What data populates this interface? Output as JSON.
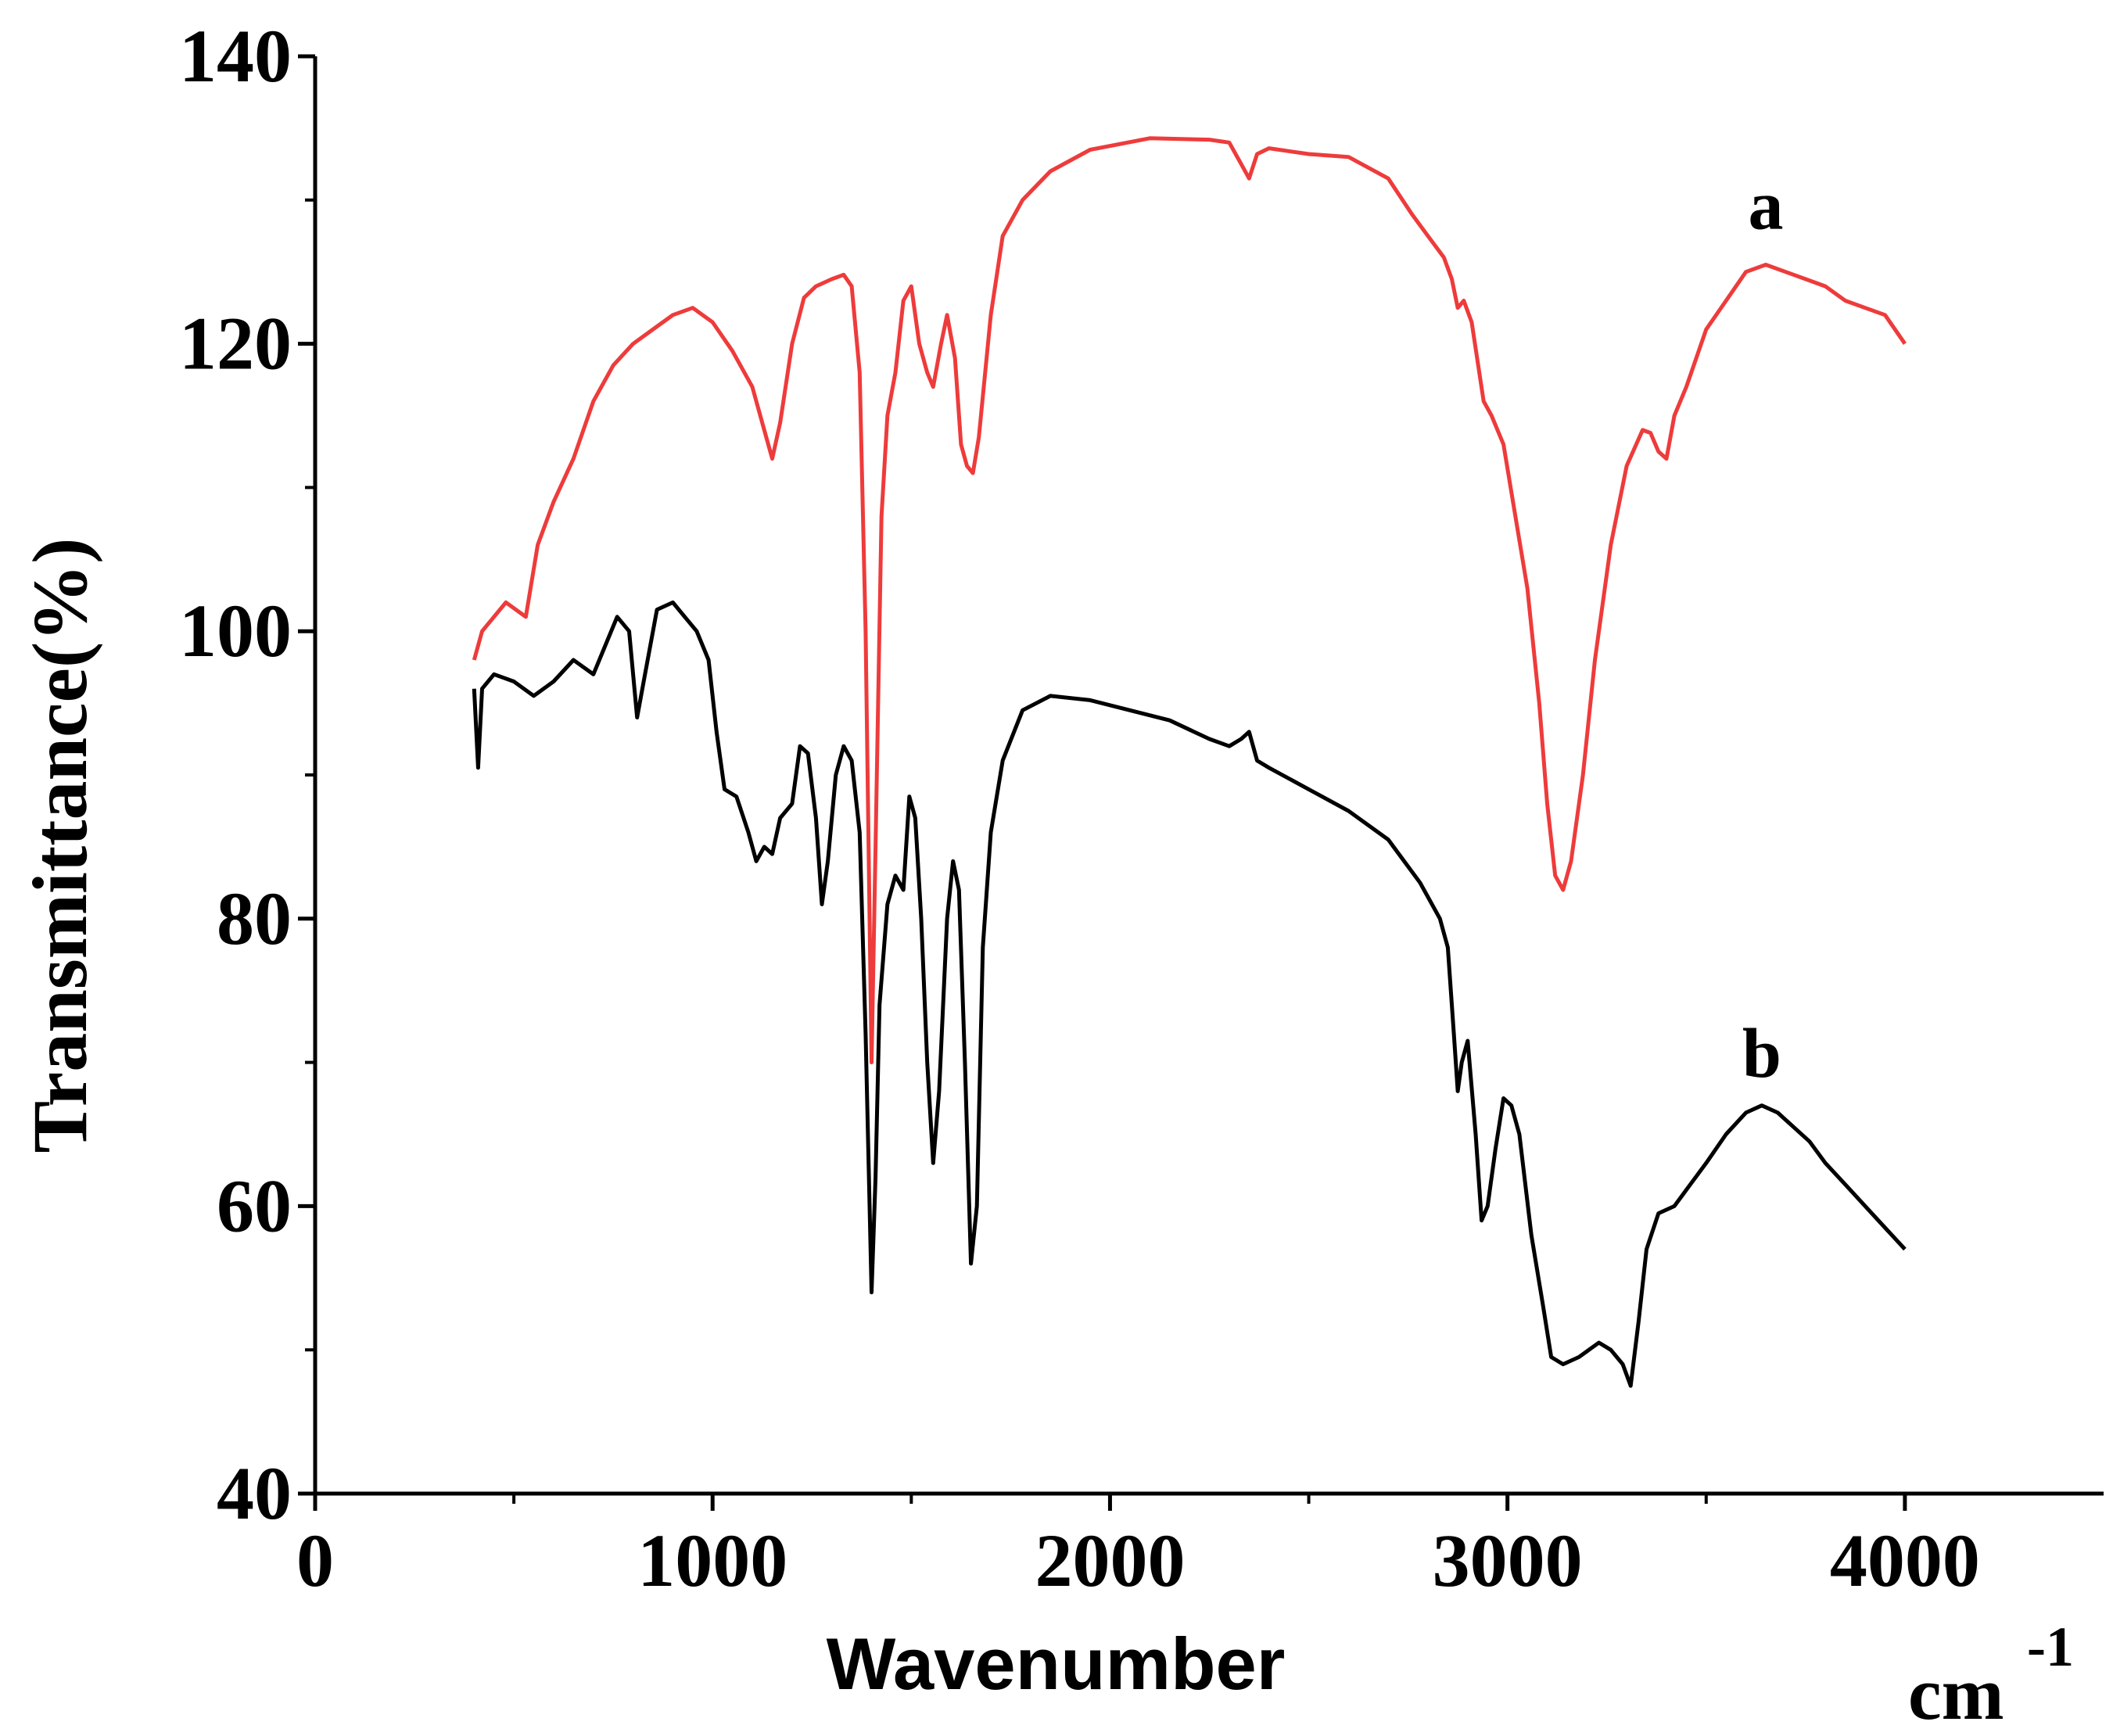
{
  "chart_data": {
    "type": "line",
    "title": "",
    "xlabel": "Wavenumber",
    "xunit": "cm",
    "xunit_exp": "-1",
    "ylabel": "Transmittance(%)",
    "xlim": [
      0,
      4500
    ],
    "ylim": [
      40,
      140
    ],
    "xticks": [
      0,
      1000,
      2000,
      3000,
      4000
    ],
    "yticks": [
      40,
      60,
      80,
      100,
      120,
      140
    ],
    "grid": false,
    "series": [
      {
        "name": "a",
        "color": "#ee3b3b",
        "label_at": [
          3650,
          128
        ],
        "points": [
          [
            400,
            98
          ],
          [
            420,
            100
          ],
          [
            480,
            102
          ],
          [
            530,
            101
          ],
          [
            560,
            106
          ],
          [
            600,
            109
          ],
          [
            650,
            112
          ],
          [
            700,
            116
          ],
          [
            750,
            118.5
          ],
          [
            800,
            120
          ],
          [
            850,
            121
          ],
          [
            900,
            122
          ],
          [
            950,
            122.5
          ],
          [
            1000,
            121.5
          ],
          [
            1050,
            119.5
          ],
          [
            1100,
            117
          ],
          [
            1130,
            114
          ],
          [
            1150,
            112
          ],
          [
            1170,
            114.5
          ],
          [
            1200,
            120
          ],
          [
            1230,
            123.2
          ],
          [
            1260,
            124
          ],
          [
            1300,
            124.5
          ],
          [
            1330,
            124.8
          ],
          [
            1350,
            124
          ],
          [
            1370,
            118
          ],
          [
            1385,
            100
          ],
          [
            1395,
            80
          ],
          [
            1400,
            70
          ],
          [
            1410,
            85
          ],
          [
            1425,
            108
          ],
          [
            1440,
            115
          ],
          [
            1460,
            118
          ],
          [
            1480,
            123
          ],
          [
            1500,
            124
          ],
          [
            1520,
            120
          ],
          [
            1540,
            118
          ],
          [
            1555,
            117
          ],
          [
            1575,
            120
          ],
          [
            1590,
            122
          ],
          [
            1610,
            119
          ],
          [
            1625,
            113
          ],
          [
            1640,
            111.5
          ],
          [
            1655,
            111
          ],
          [
            1670,
            113.5
          ],
          [
            1700,
            122
          ],
          [
            1730,
            127.5
          ],
          [
            1780,
            130
          ],
          [
            1850,
            132
          ],
          [
            1950,
            133.5
          ],
          [
            2100,
            134.3
          ],
          [
            2250,
            134.2
          ],
          [
            2300,
            134
          ],
          [
            2330,
            132.5
          ],
          [
            2350,
            131.5
          ],
          [
            2370,
            133.2
          ],
          [
            2400,
            133.6
          ],
          [
            2500,
            133.2
          ],
          [
            2600,
            133
          ],
          [
            2700,
            131.5
          ],
          [
            2760,
            129
          ],
          [
            2800,
            127.5
          ],
          [
            2840,
            126
          ],
          [
            2860,
            124.5
          ],
          [
            2875,
            122.5
          ],
          [
            2890,
            123
          ],
          [
            2910,
            121.5
          ],
          [
            2940,
            116
          ],
          [
            2960,
            115
          ],
          [
            2990,
            113
          ],
          [
            3020,
            108
          ],
          [
            3050,
            103
          ],
          [
            3080,
            95
          ],
          [
            3100,
            88
          ],
          [
            3120,
            83
          ],
          [
            3140,
            82
          ],
          [
            3160,
            84
          ],
          [
            3190,
            90
          ],
          [
            3220,
            98
          ],
          [
            3260,
            106
          ],
          [
            3300,
            111.5
          ],
          [
            3340,
            114
          ],
          [
            3360,
            113.8
          ],
          [
            3380,
            112.5
          ],
          [
            3400,
            112
          ],
          [
            3420,
            115
          ],
          [
            3450,
            117
          ],
          [
            3500,
            121
          ],
          [
            3550,
            123
          ],
          [
            3600,
            125
          ],
          [
            3650,
            125.5
          ],
          [
            3700,
            125
          ],
          [
            3750,
            124.5
          ],
          [
            3800,
            124
          ],
          [
            3850,
            123
          ],
          [
            3900,
            122.5
          ],
          [
            3950,
            122
          ],
          [
            4000,
            120
          ]
        ]
      },
      {
        "name": "b",
        "color": "#000000",
        "label_at": [
          3640,
          69
        ],
        "points": [
          [
            400,
            96
          ],
          [
            410,
            90.5
          ],
          [
            420,
            96
          ],
          [
            450,
            97
          ],
          [
            500,
            96.5
          ],
          [
            550,
            95.5
          ],
          [
            600,
            96.5
          ],
          [
            650,
            98
          ],
          [
            700,
            97
          ],
          [
            760,
            101
          ],
          [
            790,
            100
          ],
          [
            810,
            94
          ],
          [
            830,
            97
          ],
          [
            860,
            101.5
          ],
          [
            900,
            102
          ],
          [
            930,
            101
          ],
          [
            960,
            100
          ],
          [
            990,
            98
          ],
          [
            1010,
            93
          ],
          [
            1030,
            89
          ],
          [
            1060,
            88.5
          ],
          [
            1090,
            86
          ],
          [
            1110,
            84
          ],
          [
            1130,
            85
          ],
          [
            1150,
            84.5
          ],
          [
            1170,
            87
          ],
          [
            1200,
            88
          ],
          [
            1220,
            92
          ],
          [
            1240,
            91.5
          ],
          [
            1260,
            87
          ],
          [
            1275,
            81
          ],
          [
            1290,
            84
          ],
          [
            1310,
            90
          ],
          [
            1330,
            92
          ],
          [
            1350,
            91
          ],
          [
            1370,
            86
          ],
          [
            1385,
            72
          ],
          [
            1395,
            60
          ],
          [
            1400,
            54
          ],
          [
            1410,
            62
          ],
          [
            1420,
            74
          ],
          [
            1440,
            81
          ],
          [
            1460,
            83
          ],
          [
            1480,
            82
          ],
          [
            1495,
            88.5
          ],
          [
            1510,
            87
          ],
          [
            1525,
            80
          ],
          [
            1540,
            70
          ],
          [
            1555,
            63
          ],
          [
            1570,
            68
          ],
          [
            1590,
            80
          ],
          [
            1605,
            84
          ],
          [
            1620,
            82
          ],
          [
            1635,
            70
          ],
          [
            1650,
            56
          ],
          [
            1665,
            60
          ],
          [
            1680,
            78
          ],
          [
            1700,
            86
          ],
          [
            1730,
            91
          ],
          [
            1780,
            94.5
          ],
          [
            1850,
            95.5
          ],
          [
            1950,
            95.2
          ],
          [
            2050,
            94.5
          ],
          [
            2150,
            93.8
          ],
          [
            2250,
            92.5
          ],
          [
            2300,
            92
          ],
          [
            2330,
            92.5
          ],
          [
            2350,
            93
          ],
          [
            2370,
            91
          ],
          [
            2400,
            90.5
          ],
          [
            2500,
            89
          ],
          [
            2600,
            87.5
          ],
          [
            2700,
            85.5
          ],
          [
            2780,
            82.5
          ],
          [
            2830,
            80
          ],
          [
            2850,
            78
          ],
          [
            2865,
            72
          ],
          [
            2875,
            68
          ],
          [
            2885,
            70
          ],
          [
            2900,
            71.5
          ],
          [
            2920,
            65
          ],
          [
            2935,
            59
          ],
          [
            2950,
            60
          ],
          [
            2970,
            64
          ],
          [
            2990,
            67.5
          ],
          [
            3010,
            67
          ],
          [
            3030,
            65
          ],
          [
            3060,
            58
          ],
          [
            3090,
            53
          ],
          [
            3110,
            49.5
          ],
          [
            3140,
            49
          ],
          [
            3180,
            49.5
          ],
          [
            3230,
            50.5
          ],
          [
            3260,
            50
          ],
          [
            3290,
            49
          ],
          [
            3310,
            47.5
          ],
          [
            3330,
            52
          ],
          [
            3350,
            57
          ],
          [
            3380,
            59.5
          ],
          [
            3420,
            60
          ],
          [
            3460,
            61.5
          ],
          [
            3500,
            63
          ],
          [
            3550,
            65
          ],
          [
            3600,
            66.5
          ],
          [
            3640,
            67
          ],
          [
            3680,
            66.5
          ],
          [
            3720,
            65.5
          ],
          [
            3760,
            64.5
          ],
          [
            3800,
            63
          ],
          [
            3850,
            61.5
          ],
          [
            3900,
            60
          ],
          [
            3950,
            58.5
          ],
          [
            4000,
            57
          ]
        ]
      }
    ]
  }
}
